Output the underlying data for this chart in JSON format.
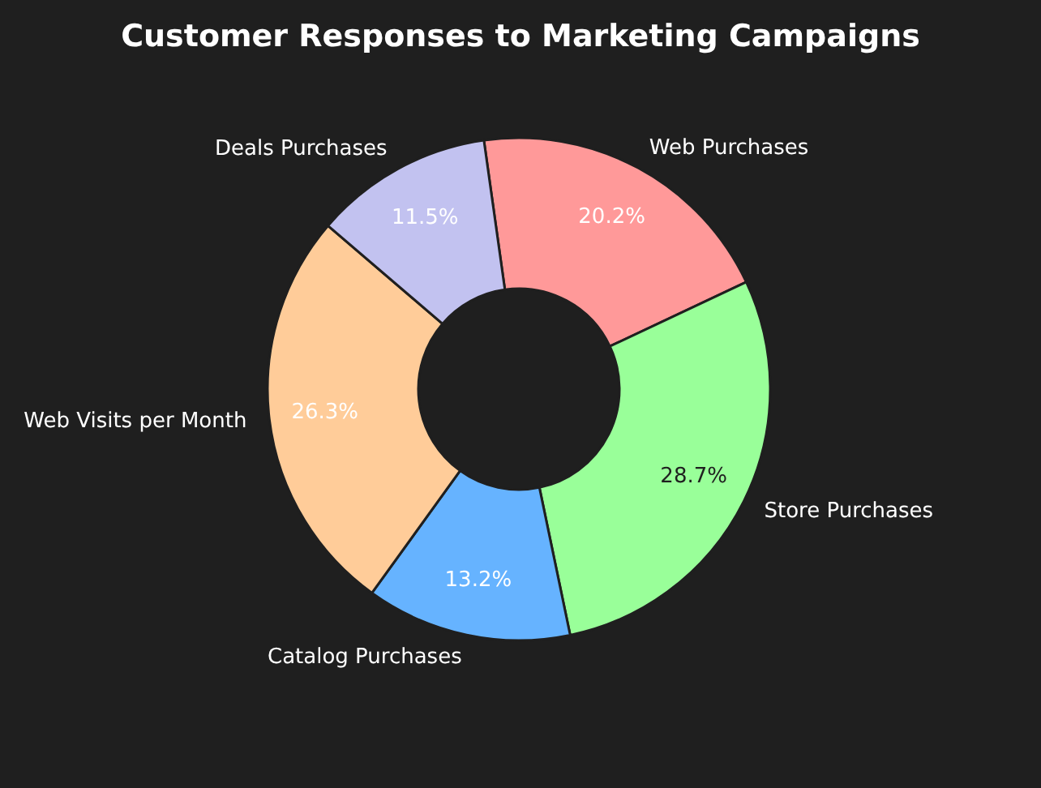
{
  "chart_data": {
    "type": "donut",
    "title": "Customer Responses to Marketing Campaigns",
    "categories": [
      "Web Purchases",
      "Store Purchases",
      "Catalog Purchases",
      "Web Visits per Month",
      "Deals Purchases"
    ],
    "values": [
      20.2,
      28.7,
      13.2,
      26.3,
      11.5
    ],
    "value_labels": [
      "20.2%",
      "28.7%",
      "13.2%",
      "26.3%",
      "11.5%"
    ],
    "colors": [
      "#ff9999",
      "#99ff99",
      "#66b3ff",
      "#ffcc99",
      "#c2c2f0"
    ],
    "legend": false
  }
}
